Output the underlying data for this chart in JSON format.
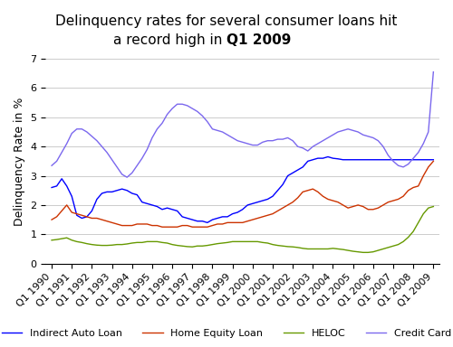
{
  "title_line1": "Delinquency rates for several consumer loans hit",
  "title_line2": "a record high in ",
  "title_bold_part": "Q1 2009",
  "ylabel": "Delinquency Rate in %",
  "ylim": [
    0,
    7
  ],
  "yticks": [
    0,
    1,
    2,
    3,
    4,
    5,
    6,
    7
  ],
  "x_labels": [
    "Q1 1990",
    "Q1 1991",
    "Q1 1992",
    "Q1 1993",
    "Q1 1994",
    "Q1 1995",
    "Q1 1996",
    "Q1 1997",
    "Q1 1998",
    "Q1 1999",
    "Q1 2000",
    "Q1 2001",
    "Q1 2002",
    "Q1 2003",
    "Q1 2004",
    "Q1 2005",
    "Q1 2006",
    "Q1 2007",
    "Q1 2008",
    "Q1 2009"
  ],
  "series": {
    "Indirect Auto Loan": {
      "color": "#0000FF",
      "data": [
        2.6,
        2.65,
        2.9,
        2.65,
        2.3,
        1.65,
        1.55,
        1.6,
        1.8,
        2.2,
        2.4,
        2.45,
        2.45,
        2.5,
        2.55,
        2.5,
        2.4,
        2.35,
        2.1,
        2.05,
        2.0,
        1.95,
        1.85,
        1.9,
        1.85,
        1.8,
        1.6,
        1.55,
        1.5,
        1.45,
        1.45,
        1.4,
        1.5,
        1.55,
        1.6,
        1.6,
        1.7,
        1.75,
        1.85,
        2.0,
        2.05,
        2.1,
        2.15,
        2.2,
        2.3,
        2.5,
        2.7,
        3.0,
        3.1,
        3.2,
        3.3,
        3.5,
        3.55,
        3.6,
        3.6,
        3.65,
        3.6,
        3.58,
        3.55,
        3.55,
        3.55,
        3.55,
        3.55,
        3.55,
        3.55,
        3.55,
        3.55,
        3.55,
        3.55,
        3.55,
        3.55,
        3.55,
        3.55,
        3.55,
        3.55,
        3.55,
        3.55
      ]
    },
    "Home Equity Loan": {
      "color": "#CC3300",
      "data": [
        1.5,
        1.6,
        1.8,
        2.0,
        1.75,
        1.7,
        1.65,
        1.6,
        1.55,
        1.55,
        1.5,
        1.45,
        1.4,
        1.35,
        1.3,
        1.3,
        1.3,
        1.35,
        1.35,
        1.35,
        1.3,
        1.3,
        1.25,
        1.25,
        1.25,
        1.25,
        1.3,
        1.3,
        1.25,
        1.25,
        1.25,
        1.25,
        1.3,
        1.35,
        1.35,
        1.4,
        1.4,
        1.4,
        1.4,
        1.45,
        1.5,
        1.55,
        1.6,
        1.65,
        1.7,
        1.8,
        1.9,
        2.0,
        2.1,
        2.25,
        2.45,
        2.5,
        2.55,
        2.45,
        2.3,
        2.2,
        2.15,
        2.1,
        2.0,
        1.9,
        1.95,
        2.0,
        1.95,
        1.85,
        1.85,
        1.9,
        2.0,
        2.1,
        2.15,
        2.2,
        2.3,
        2.5,
        2.6,
        2.65,
        3.0,
        3.3,
        3.5
      ]
    },
    "HELOC": {
      "color": "#669900",
      "data": [
        0.8,
        0.82,
        0.85,
        0.88,
        0.8,
        0.75,
        0.72,
        0.68,
        0.65,
        0.63,
        0.62,
        0.62,
        0.63,
        0.65,
        0.65,
        0.67,
        0.7,
        0.72,
        0.72,
        0.75,
        0.75,
        0.75,
        0.72,
        0.7,
        0.65,
        0.62,
        0.6,
        0.58,
        0.57,
        0.6,
        0.6,
        0.62,
        0.65,
        0.68,
        0.7,
        0.72,
        0.75,
        0.75,
        0.75,
        0.75,
        0.75,
        0.75,
        0.72,
        0.7,
        0.65,
        0.62,
        0.6,
        0.58,
        0.57,
        0.55,
        0.52,
        0.5,
        0.5,
        0.5,
        0.5,
        0.5,
        0.52,
        0.5,
        0.48,
        0.45,
        0.42,
        0.4,
        0.38,
        0.38,
        0.4,
        0.45,
        0.5,
        0.55,
        0.6,
        0.65,
        0.75,
        0.9,
        1.1,
        1.4,
        1.7,
        1.9,
        1.95
      ]
    },
    "Credit Card": {
      "color": "#7B68EE",
      "data": [
        3.35,
        3.5,
        3.8,
        4.1,
        4.45,
        4.6,
        4.6,
        4.5,
        4.35,
        4.2,
        4.0,
        3.8,
        3.55,
        3.3,
        3.05,
        2.95,
        3.1,
        3.35,
        3.6,
        3.9,
        4.3,
        4.6,
        4.8,
        5.1,
        5.3,
        5.45,
        5.45,
        5.4,
        5.3,
        5.2,
        5.05,
        4.85,
        4.6,
        4.55,
        4.5,
        4.4,
        4.3,
        4.2,
        4.15,
        4.1,
        4.05,
        4.05,
        4.15,
        4.2,
        4.2,
        4.25,
        4.25,
        4.3,
        4.2,
        4.0,
        3.95,
        3.85,
        4.0,
        4.1,
        4.2,
        4.3,
        4.4,
        4.5,
        4.55,
        4.6,
        4.55,
        4.5,
        4.4,
        4.35,
        4.3,
        4.2,
        4.0,
        3.7,
        3.5,
        3.35,
        3.3,
        3.4,
        3.6,
        3.8,
        4.1,
        4.5,
        6.55
      ]
    }
  },
  "legend_order": [
    "Indirect Auto Loan",
    "Home Equity Loan",
    "HELOC",
    "Credit Card"
  ],
  "background_color": "#FFFFFF",
  "grid_color": "#CCCCCC",
  "title_fontsize": 11,
  "axis_label_fontsize": 9,
  "tick_fontsize": 8,
  "legend_fontsize": 8
}
